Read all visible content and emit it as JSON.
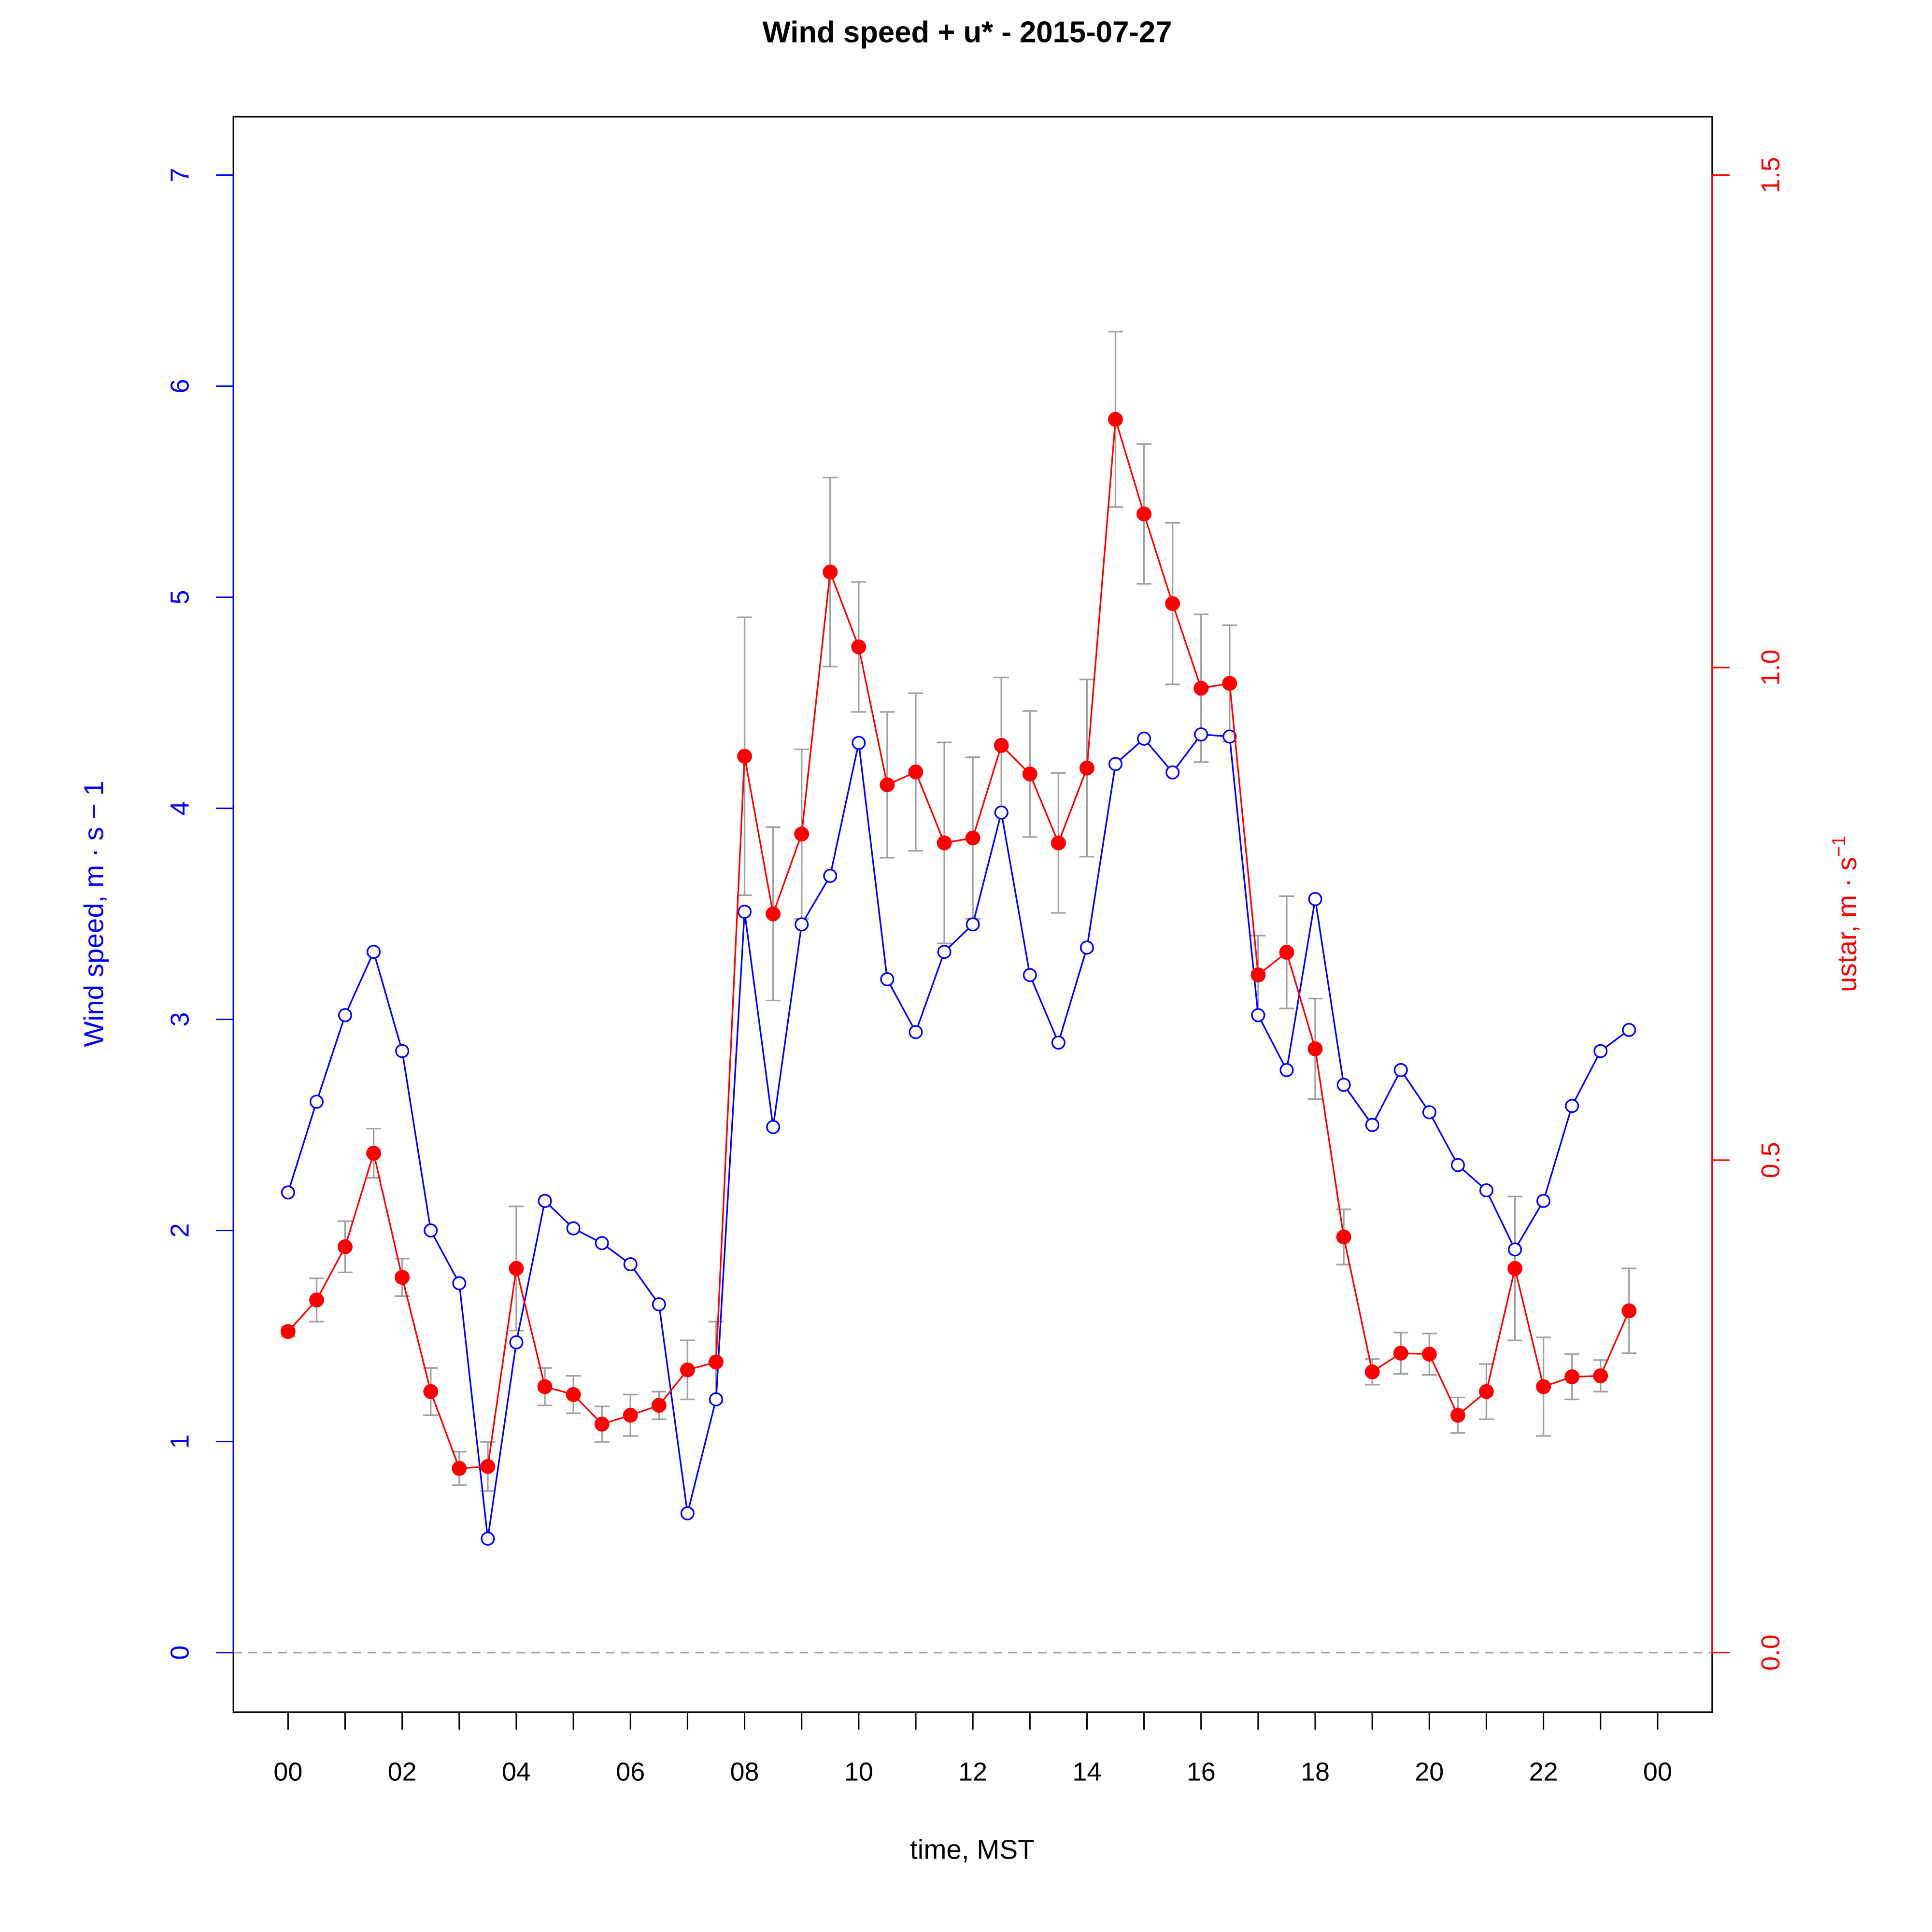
{
  "chart_data": {
    "type": "line",
    "title": "Wind speed + u* -  2015-07-27",
    "xlabel": "time, MST",
    "ylabel_left": "Wind speed, m · s − 1",
    "ylabel_right": "ustar, m · s",
    "ylabel_right_sup": "−1",
    "xlim_hours": [
      0,
      24
    ],
    "ylim_left": [
      0,
      7
    ],
    "ylim_right": [
      0,
      1.5
    ],
    "x_tick_labels": [
      "00",
      "02",
      "04",
      "06",
      "08",
      "10",
      "12",
      "14",
      "16",
      "18",
      "20",
      "22",
      "00"
    ],
    "y_left_ticks": [
      "0",
      "1",
      "2",
      "3",
      "4",
      "5",
      "6",
      "7"
    ],
    "y_right_ticks": [
      "0.0",
      "0.5",
      "1.0",
      "1.5"
    ],
    "colors": {
      "wind": "#0000ff",
      "ustar": "#ff0000",
      "error": "#a0a0a0",
      "zero": "#a0a0a0"
    },
    "x_hours": [
      0,
      0.5,
      1,
      1.5,
      2,
      2.5,
      3,
      3.5,
      4,
      4.5,
      5,
      5.5,
      6,
      6.5,
      7,
      7.5,
      8,
      8.5,
      9,
      9.5,
      10,
      10.5,
      11,
      11.5,
      12,
      12.5,
      13,
      13.5,
      14,
      14.5,
      15,
      15.5,
      16,
      16.5,
      17,
      17.5,
      18,
      18.5,
      19,
      19.5,
      20,
      20.5,
      21,
      21.5,
      22,
      22.5,
      23,
      23.5
    ],
    "series": [
      {
        "name": "Wind speed",
        "axis": "left",
        "marker": "open-circle",
        "values": [
          2.18,
          2.61,
          3.02,
          3.32,
          2.85,
          2.0,
          1.75,
          0.54,
          1.47,
          2.14,
          2.01,
          1.94,
          1.84,
          1.65,
          0.66,
          1.2,
          3.51,
          2.49,
          3.45,
          3.68,
          4.31,
          3.19,
          2.94,
          3.32,
          3.45,
          3.98,
          3.21,
          2.89,
          3.34,
          4.21,
          4.33,
          4.17,
          4.35,
          4.34,
          3.02,
          2.76,
          3.57,
          2.69,
          2.5,
          2.76,
          2.56,
          2.31,
          2.19,
          1.91,
          2.14,
          2.59,
          2.85,
          2.95
        ]
      },
      {
        "name": "ustar",
        "axis": "right",
        "marker": "filled-circle",
        "values": [
          0.326,
          0.358,
          0.412,
          0.507,
          0.381,
          0.265,
          0.187,
          0.189,
          0.39,
          0.27,
          0.262,
          0.232,
          0.241,
          0.251,
          0.287,
          0.295,
          0.91,
          0.75,
          0.831,
          1.097,
          1.021,
          0.881,
          0.894,
          0.822,
          0.827,
          0.921,
          0.892,
          0.822,
          0.898,
          1.252,
          1.156,
          1.065,
          0.979,
          0.984,
          0.688,
          0.711,
          0.613,
          0.422,
          0.285,
          0.304,
          0.303,
          0.241,
          0.265,
          0.39,
          0.27,
          0.28,
          0.281,
          0.347
        ],
        "error": [
          0.005,
          0.022,
          0.026,
          0.025,
          0.019,
          0.024,
          0.017,
          0.025,
          0.063,
          0.019,
          0.019,
          0.018,
          0.021,
          0.014,
          0.03,
          0.041,
          0.141,
          0.088,
          0.086,
          0.096,
          0.066,
          0.074,
          0.08,
          0.102,
          0.082,
          0.069,
          0.064,
          0.071,
          0.09,
          0.089,
          0.071,
          0.082,
          0.075,
          0.059,
          0.04,
          0.057,
          0.051,
          0.028,
          0.013,
          0.021,
          0.021,
          0.018,
          0.028,
          0.073,
          0.05,
          0.023,
          0.016,
          0.043
        ]
      }
    ]
  }
}
